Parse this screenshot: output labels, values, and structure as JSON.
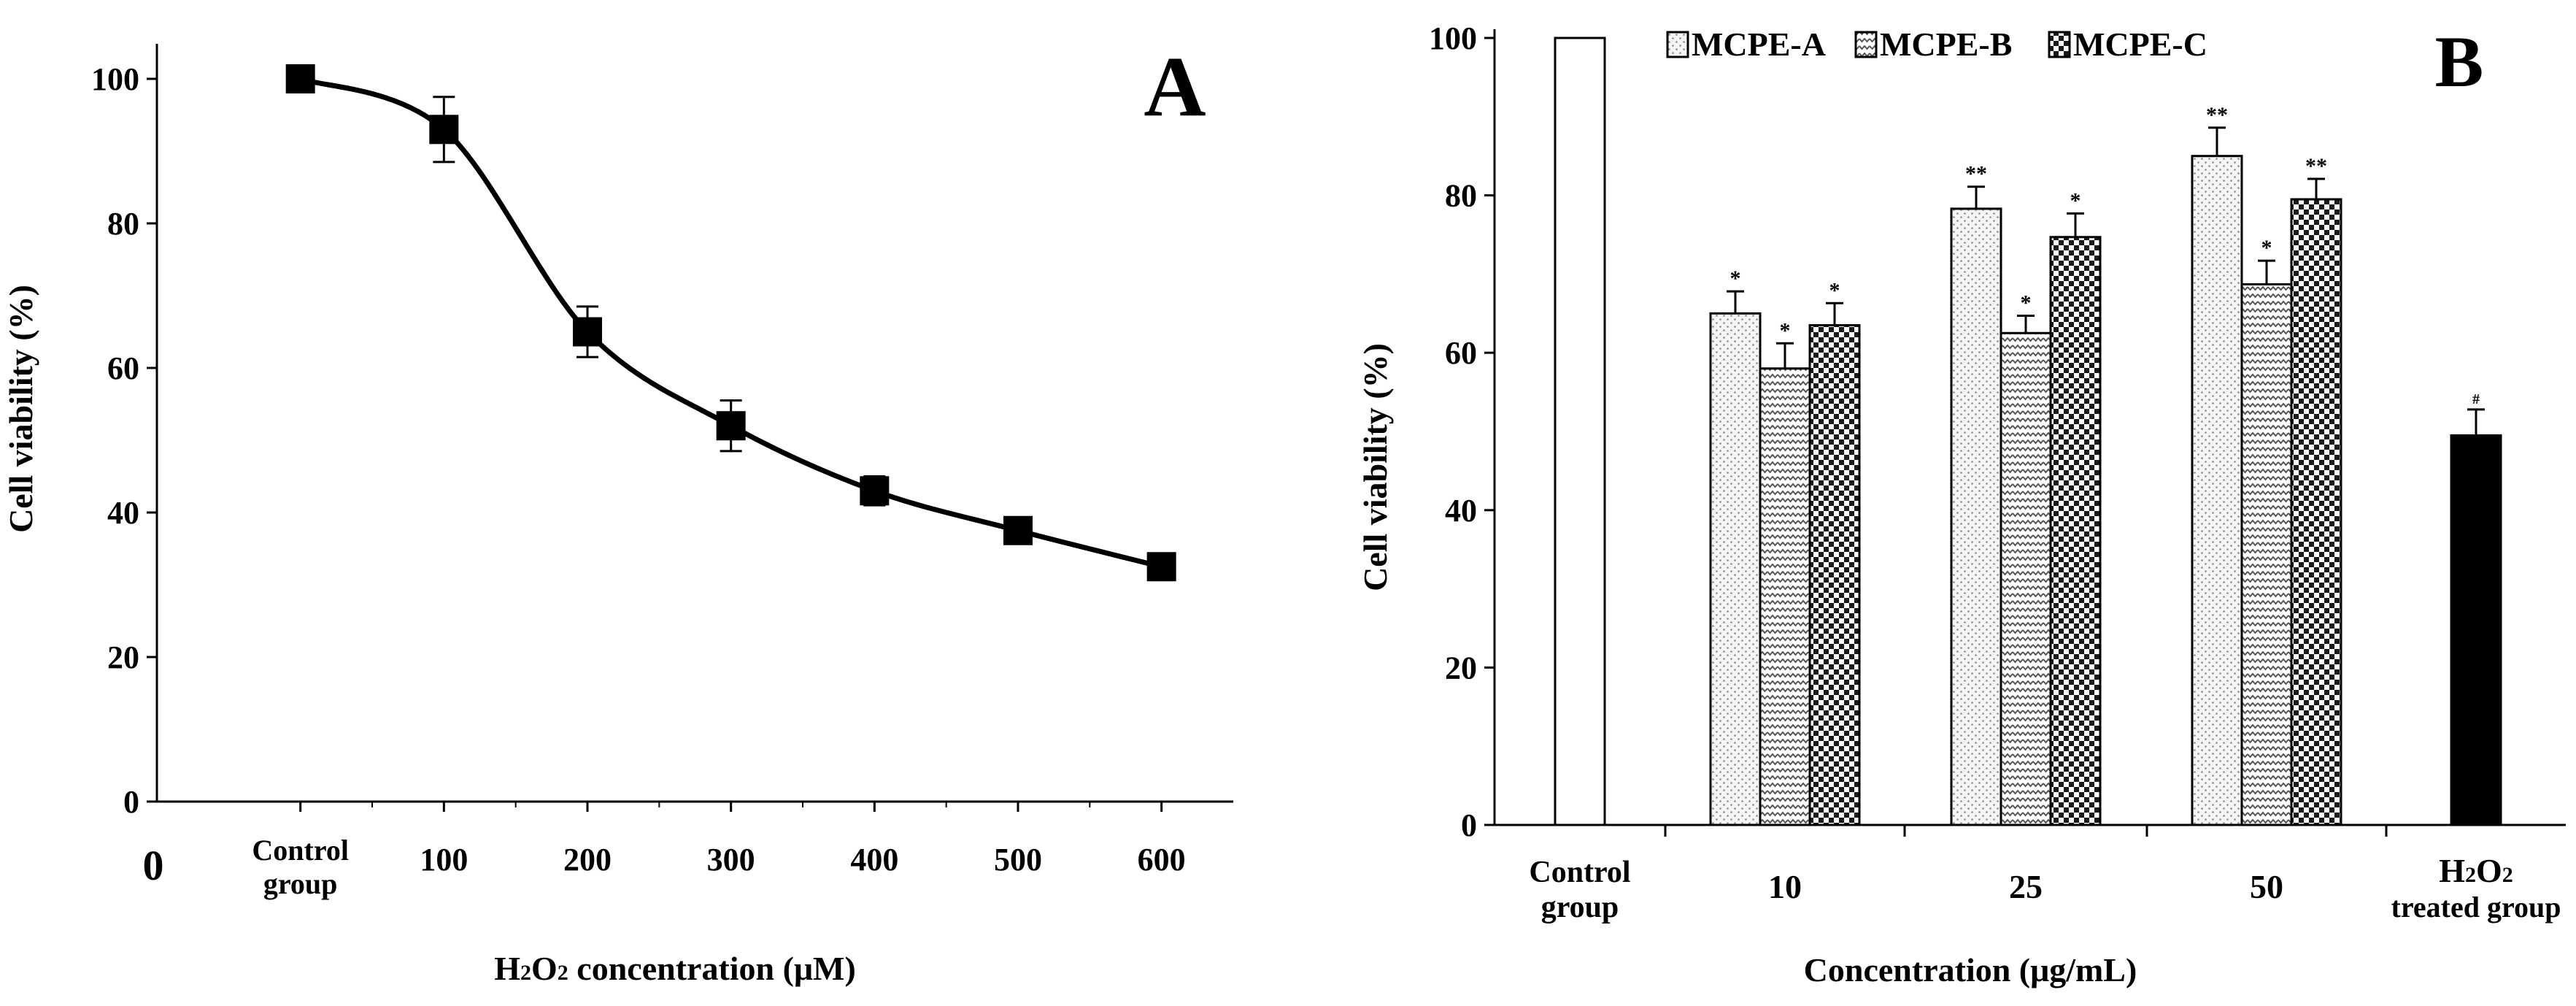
{
  "chart_data": [
    {
      "type": "line",
      "panel_label": "A",
      "ylabel": "Cell viability (%)",
      "xlabel_parts": [
        "H",
        "2",
        "O",
        "2",
        " concentration (μM)"
      ],
      "origin_label": "0",
      "ylim": [
        0,
        100
      ],
      "yticks": [
        0,
        20,
        40,
        60,
        80,
        100
      ],
      "xticks": [
        {
          "x": 100,
          "lines": [
            "Control",
            "group"
          ]
        },
        {
          "x": 200,
          "lines": [
            "100"
          ]
        },
        {
          "x": 300,
          "lines": [
            "200"
          ]
        },
        {
          "x": 400,
          "lines": [
            "300"
          ]
        },
        {
          "x": 500,
          "lines": [
            "400"
          ]
        },
        {
          "x": 600,
          "lines": [
            "500"
          ]
        },
        {
          "x": 700,
          "lines": [
            "600"
          ]
        }
      ],
      "xlim": [
        0,
        750
      ],
      "series": [
        {
          "x": [
            100,
            200,
            300,
            400,
            500,
            600,
            700
          ],
          "y": [
            100,
            93,
            65,
            52,
            43,
            37.5,
            32.5
          ],
          "err": [
            0,
            4.5,
            3.5,
            3.5,
            2,
            0,
            0
          ]
        }
      ],
      "marker": "square",
      "grid": false
    },
    {
      "type": "bar",
      "panel_label": "B",
      "ylabel": "Cell viability (%)",
      "xlabel": "Concentration (μg/mL)",
      "ylim": [
        0,
        100
      ],
      "yticks": [
        0,
        20,
        40,
        60,
        80,
        100
      ],
      "legend_position": "top",
      "legend": [
        "MCPE-A",
        "MCPE-B",
        "MCPE-C"
      ],
      "groups": [
        {
          "lines": [
            "Control",
            "group"
          ],
          "bars": [
            {
              "kind": "control",
              "value": 100,
              "err": 0,
              "sig": ""
            }
          ]
        },
        {
          "lines": [
            "10"
          ],
          "bars": [
            {
              "kind": "A",
              "value": 65,
              "err": 2.8,
              "sig": "*"
            },
            {
              "kind": "B",
              "value": 58,
              "err": 3.2,
              "sig": "*"
            },
            {
              "kind": "C",
              "value": 63.5,
              "err": 2.8,
              "sig": "*"
            }
          ]
        },
        {
          "lines": [
            "25"
          ],
          "bars": [
            {
              "kind": "A",
              "value": 78.3,
              "err": 2.8,
              "sig": "**"
            },
            {
              "kind": "B",
              "value": 62.5,
              "err": 2.2,
              "sig": "*"
            },
            {
              "kind": "C",
              "value": 74.7,
              "err": 3.0,
              "sig": "*"
            }
          ]
        },
        {
          "lines": [
            "50"
          ],
          "bars": [
            {
              "kind": "A",
              "value": 85,
              "err": 3.6,
              "sig": "**"
            },
            {
              "kind": "B",
              "value": 68.7,
              "err": 3.0,
              "sig": "*"
            },
            {
              "kind": "C",
              "value": 79.5,
              "err": 2.6,
              "sig": "**"
            }
          ]
        },
        {
          "lines_h2o2": [
            "H",
            "2",
            "O",
            "2"
          ],
          "lines": [
            "treated group"
          ],
          "bars": [
            {
              "kind": "h2o2",
              "value": 49.5,
              "err": 3.3,
              "sig": "#"
            }
          ]
        }
      ],
      "grid": false
    }
  ]
}
